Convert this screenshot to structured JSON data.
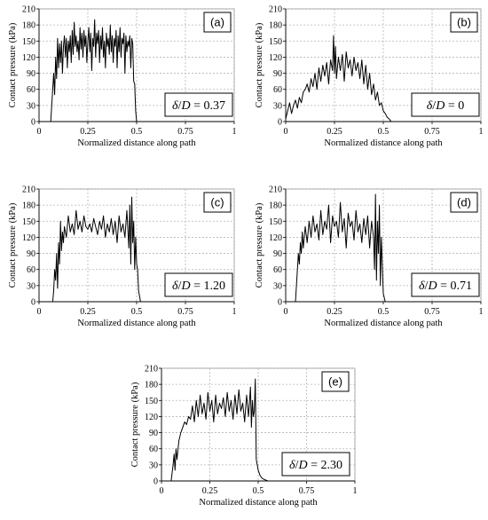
{
  "chart_data": [
    {
      "type": "line",
      "panel": "(a)",
      "annotation": {
        "delta_symbol": "δ",
        "D_symbol": "D",
        "value": "0.37"
      },
      "xlabel": "Normalized distance along path",
      "ylabel": "Contact pressure (kPa)",
      "xlim": [
        0,
        1
      ],
      "ylim": [
        0,
        210
      ],
      "xticks": [
        "0",
        "0.25",
        "0.5",
        "0.75",
        "1"
      ],
      "yticks": [
        "0",
        "30",
        "60",
        "90",
        "120",
        "150",
        "180",
        "210"
      ],
      "grid": true,
      "series": [
        {
          "x": [
            0,
            0.06,
            0.065,
            0.07,
            0.075,
            0.08,
            0.085,
            0.09,
            0.095,
            0.1,
            0.105,
            0.11,
            0.115,
            0.12,
            0.125,
            0.13,
            0.135,
            0.14,
            0.145,
            0.15,
            0.155,
            0.16,
            0.165,
            0.17,
            0.175,
            0.18,
            0.185,
            0.19,
            0.195,
            0.2,
            0.205,
            0.21,
            0.215,
            0.22,
            0.225,
            0.23,
            0.235,
            0.24,
            0.245,
            0.25,
            0.255,
            0.26,
            0.265,
            0.27,
            0.275,
            0.28,
            0.285,
            0.29,
            0.295,
            0.3,
            0.305,
            0.31,
            0.315,
            0.32,
            0.325,
            0.33,
            0.335,
            0.34,
            0.345,
            0.35,
            0.355,
            0.36,
            0.365,
            0.37,
            0.375,
            0.38,
            0.385,
            0.39,
            0.395,
            0.4,
            0.405,
            0.41,
            0.415,
            0.42,
            0.425,
            0.43,
            0.435,
            0.44,
            0.445,
            0.45,
            0.455,
            0.46,
            0.465,
            0.47,
            0.475,
            0.48,
            0.485,
            0.49,
            0.495,
            0.5,
            0.505,
            0.51,
            1
          ],
          "y": [
            0,
            0,
            30,
            60,
            90,
            50,
            120,
            80,
            155,
            100,
            145,
            110,
            150,
            90,
            140,
            160,
            120,
            155,
            100,
            150,
            130,
            160,
            110,
            170,
            125,
            185,
            140,
            160,
            130,
            150,
            115,
            175,
            135,
            165,
            120,
            170,
            140,
            160,
            110,
            150,
            175,
            130,
            165,
            95,
            155,
            140,
            190,
            120,
            165,
            145,
            170,
            110,
            160,
            135,
            175,
            120,
            150,
            100,
            165,
            140,
            155,
            125,
            180,
            130,
            160,
            110,
            155,
            140,
            170,
            100,
            160,
            130,
            175,
            120,
            155,
            145,
            165,
            90,
            160,
            130,
            150,
            140,
            160,
            100,
            155,
            145,
            75,
            70,
            20,
            0,
            0,
            0,
            0
          ]
        }
      ]
    },
    {
      "type": "line",
      "panel": "(b)",
      "annotation": {
        "delta_symbol": "δ",
        "D_symbol": "D",
        "value": "0"
      },
      "xlabel": "Normalized distance along path",
      "ylabel": "Contact pressure (kPa)",
      "xlim": [
        0,
        1
      ],
      "ylim": [
        0,
        210
      ],
      "xticks": [
        "0",
        "0.25",
        "0.5",
        "0.75",
        "1"
      ],
      "yticks": [
        "0",
        "30",
        "60",
        "90",
        "120",
        "150",
        "180",
        "210"
      ],
      "grid": true,
      "series": [
        {
          "x": [
            0,
            0.01,
            0.02,
            0.03,
            0.04,
            0.05,
            0.06,
            0.07,
            0.08,
            0.09,
            0.1,
            0.11,
            0.12,
            0.13,
            0.14,
            0.15,
            0.16,
            0.17,
            0.18,
            0.19,
            0.2,
            0.21,
            0.22,
            0.23,
            0.24,
            0.245,
            0.25,
            0.255,
            0.26,
            0.27,
            0.28,
            0.29,
            0.3,
            0.31,
            0.32,
            0.33,
            0.34,
            0.35,
            0.36,
            0.37,
            0.38,
            0.39,
            0.4,
            0.41,
            0.42,
            0.43,
            0.44,
            0.45,
            0.46,
            0.47,
            0.48,
            0.49,
            0.5,
            0.51,
            0.52,
            0.53,
            0.54,
            1
          ],
          "y": [
            5,
            20,
            35,
            15,
            30,
            40,
            25,
            45,
            35,
            55,
            60,
            70,
            55,
            80,
            65,
            90,
            60,
            100,
            75,
            105,
            85,
            110,
            70,
            115,
            95,
            160,
            90,
            140,
            80,
            120,
            95,
            125,
            75,
            130,
            100,
            115,
            85,
            120,
            95,
            110,
            80,
            115,
            70,
            105,
            60,
            90,
            50,
            70,
            40,
            55,
            30,
            35,
            20,
            15,
            8,
            5,
            0,
            0
          ]
        }
      ]
    },
    {
      "type": "line",
      "panel": "(c)",
      "annotation": {
        "delta_symbol": "δ",
        "D_symbol": "D",
        "value": "1.20"
      },
      "xlabel": "Normalized distance along path",
      "ylabel": "Contact pressure (kPa)",
      "xlim": [
        0,
        1
      ],
      "ylim": [
        0,
        210
      ],
      "xticks": [
        "0",
        "0.25",
        "0.5",
        "0.75",
        "1"
      ],
      "yticks": [
        "0",
        "30",
        "60",
        "90",
        "120",
        "150",
        "180",
        "210"
      ],
      "grid": true,
      "series": [
        {
          "x": [
            0,
            0.07,
            0.075,
            0.08,
            0.085,
            0.09,
            0.095,
            0.1,
            0.105,
            0.11,
            0.115,
            0.12,
            0.125,
            0.13,
            0.14,
            0.15,
            0.16,
            0.17,
            0.18,
            0.19,
            0.2,
            0.21,
            0.22,
            0.23,
            0.24,
            0.25,
            0.26,
            0.27,
            0.28,
            0.29,
            0.3,
            0.31,
            0.32,
            0.33,
            0.34,
            0.35,
            0.36,
            0.37,
            0.38,
            0.39,
            0.4,
            0.41,
            0.42,
            0.43,
            0.44,
            0.45,
            0.46,
            0.465,
            0.47,
            0.475,
            0.48,
            0.485,
            0.49,
            0.495,
            0.5,
            0.505,
            0.51,
            0.52,
            1
          ],
          "y": [
            0,
            0,
            20,
            60,
            40,
            90,
            25,
            110,
            70,
            150,
            95,
            130,
            110,
            140,
            120,
            160,
            130,
            145,
            125,
            170,
            135,
            150,
            130,
            160,
            140,
            135,
            145,
            130,
            155,
            140,
            125,
            150,
            135,
            160,
            120,
            145,
            130,
            155,
            125,
            150,
            110,
            160,
            130,
            145,
            120,
            170,
            100,
            180,
            70,
            195,
            110,
            150,
            60,
            120,
            70,
            60,
            20,
            0,
            0
          ]
        }
      ]
    },
    {
      "type": "line",
      "panel": "(d)",
      "annotation": {
        "delta_symbol": "δ",
        "D_symbol": "D",
        "value": "0.71"
      },
      "xlabel": "Normalized distance along path",
      "ylabel": "Contact pressure (kPa)",
      "xlim": [
        0,
        1
      ],
      "ylim": [
        0,
        210
      ],
      "xticks": [
        "0",
        "0.25",
        "0.5",
        "0.75",
        "1"
      ],
      "yticks": [
        "0",
        "30",
        "60",
        "90",
        "120",
        "150",
        "180",
        "210"
      ],
      "grid": true,
      "series": [
        {
          "x": [
            0,
            0.05,
            0.055,
            0.06,
            0.065,
            0.07,
            0.075,
            0.08,
            0.085,
            0.09,
            0.095,
            0.1,
            0.11,
            0.12,
            0.13,
            0.14,
            0.15,
            0.16,
            0.17,
            0.18,
            0.19,
            0.2,
            0.21,
            0.22,
            0.23,
            0.24,
            0.25,
            0.26,
            0.27,
            0.28,
            0.29,
            0.3,
            0.31,
            0.32,
            0.33,
            0.34,
            0.35,
            0.36,
            0.37,
            0.38,
            0.39,
            0.4,
            0.41,
            0.42,
            0.43,
            0.44,
            0.45,
            0.455,
            0.46,
            0.465,
            0.47,
            0.475,
            0.48,
            0.485,
            0.49,
            0.5,
            0.51,
            1
          ],
          "y": [
            0,
            0,
            30,
            60,
            90,
            70,
            110,
            90,
            130,
            100,
            120,
            140,
            110,
            150,
            120,
            160,
            130,
            145,
            115,
            170,
            125,
            150,
            135,
            180,
            110,
            160,
            140,
            150,
            120,
            185,
            130,
            155,
            100,
            165,
            140,
            150,
            115,
            170,
            130,
            145,
            110,
            155,
            125,
            160,
            100,
            150,
            120,
            60,
            200,
            40,
            150,
            90,
            180,
            30,
            120,
            15,
            0,
            0
          ]
        }
      ]
    },
    {
      "type": "line",
      "panel": "(e)",
      "annotation": {
        "delta_symbol": "δ",
        "D_symbol": "D",
        "value": "2.30"
      },
      "xlabel": "Normalized distance along path",
      "ylabel": "Contact pressure (kPa)",
      "xlim": [
        0,
        1
      ],
      "ylim": [
        0,
        210
      ],
      "xticks": [
        "0",
        "0.25",
        "0.5",
        "0.75",
        "1"
      ],
      "yticks": [
        "0",
        "30",
        "60",
        "90",
        "120",
        "150",
        "180",
        "210"
      ],
      "grid": true,
      "series": [
        {
          "x": [
            0,
            0.05,
            0.055,
            0.06,
            0.065,
            0.07,
            0.075,
            0.08,
            0.09,
            0.1,
            0.11,
            0.12,
            0.13,
            0.14,
            0.15,
            0.16,
            0.17,
            0.18,
            0.19,
            0.2,
            0.21,
            0.22,
            0.23,
            0.24,
            0.25,
            0.26,
            0.27,
            0.28,
            0.29,
            0.3,
            0.31,
            0.32,
            0.33,
            0.34,
            0.35,
            0.36,
            0.37,
            0.38,
            0.39,
            0.4,
            0.41,
            0.42,
            0.43,
            0.44,
            0.45,
            0.46,
            0.465,
            0.47,
            0.475,
            0.48,
            0.485,
            0.49,
            0.5,
            0.51,
            0.52,
            0.53,
            0.55,
            0.6,
            1
          ],
          "y": [
            0,
            0,
            15,
            30,
            50,
            20,
            60,
            40,
            75,
            90,
            100,
            110,
            105,
            120,
            115,
            140,
            110,
            150,
            120,
            160,
            125,
            145,
            115,
            165,
            130,
            150,
            110,
            160,
            125,
            145,
            135,
            155,
            120,
            165,
            130,
            150,
            115,
            160,
            125,
            170,
            130,
            145,
            110,
            160,
            120,
            175,
            100,
            150,
            120,
            130,
            190,
            40,
            20,
            10,
            5,
            3,
            0,
            0,
            0
          ]
        }
      ]
    }
  ]
}
